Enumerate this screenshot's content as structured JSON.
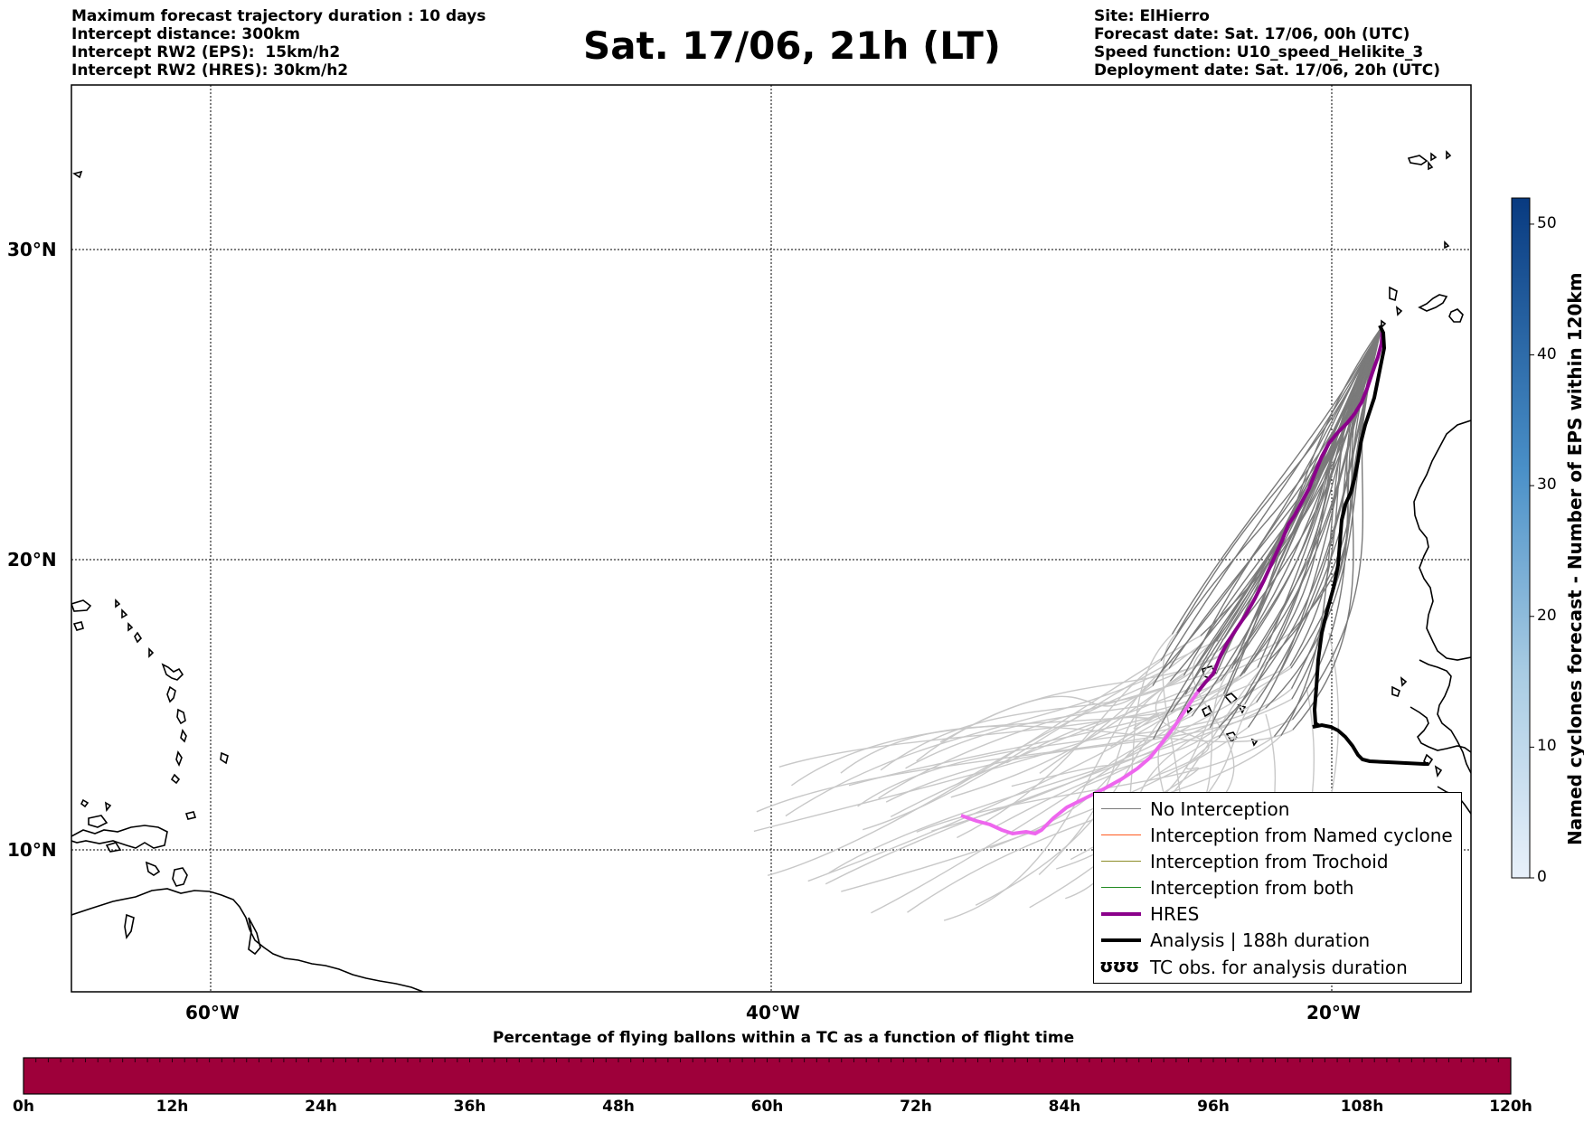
{
  "header_left": [
    "Maximum forecast trajectory duration : 10 days",
    "Intercept distance: 300km",
    "Intercept RW2 (EPS):  15km/h2",
    "Intercept RW2 (HRES): 30km/h2"
  ],
  "title": "Sat. 17/06, 21h (LT)",
  "header_right": [
    "Site: ElHierro",
    "Forecast date: Sat. 17/06, 00h (UTC)",
    "Speed function: U10_speed_Helikite_3",
    "Deployment date: Sat. 17/06, 20h (UTC)"
  ],
  "map": {
    "lat_labels": [
      "30°N",
      "20°N",
      "10°N"
    ],
    "lon_labels": [
      "60°W",
      "40°W",
      "20°W"
    ],
    "grid": "dotted",
    "colors": {
      "no_interception": "#7a7a7a",
      "no_interception_late": "#c8c8c8",
      "hres_early": "#8b008b",
      "hres_late": "#ee66ee",
      "analysis": "#000000",
      "coast": "#000000"
    }
  },
  "legend": {
    "position": "bottom-right",
    "items": [
      {
        "label": "No Interception",
        "color": "#7a7a7a",
        "width": 1.5
      },
      {
        "label": "Interception from Named cyclone",
        "color": "#ff5a1e",
        "width": 1.5
      },
      {
        "label": "Interception from Trochoid",
        "color": "#8c8c28",
        "width": 1.5
      },
      {
        "label": "Interception from both",
        "color": "#228b22",
        "width": 1.5
      },
      {
        "label": "HRES",
        "color": "#8b008b",
        "width": 4
      },
      {
        "label": "Analysis | 188h duration",
        "color": "#000000",
        "width": 4
      },
      {
        "label": "TC obs. for analysis duration",
        "color": "#000000",
        "width": 0,
        "symbol": "ʊʊʊ"
      }
    ]
  },
  "colorbar_right": {
    "label": "Named cyclones forecast - Number of EPS within 120km",
    "ticks": [
      "0",
      "10",
      "20",
      "30",
      "40",
      "50"
    ],
    "min": 0,
    "max": 52,
    "color_low": "#e6eef8",
    "color_high": "#08306b"
  },
  "colorbar_bottom": {
    "caption": "Percentage of flying ballons within a TC as a function of flight time",
    "ticks": [
      "0h",
      "12h",
      "24h",
      "36h",
      "48h",
      "60h",
      "72h",
      "84h",
      "96h",
      "108h",
      "120h"
    ],
    "fill": "#9e003a"
  }
}
